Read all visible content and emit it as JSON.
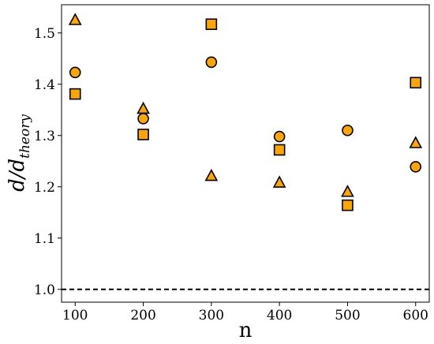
{
  "chart_data": {
    "type": "scatter",
    "xlabel": "n",
    "ylabel": {
      "main": "d/d",
      "subscript": "theory"
    },
    "xlim": [
      80,
      620
    ],
    "ylim": [
      0.975,
      1.555
    ],
    "xticks": [
      "100",
      "200",
      "300",
      "400",
      "500",
      "600"
    ],
    "yticks": [
      "1.0",
      "1.1",
      "1.2",
      "1.3",
      "1.4",
      "1.5"
    ],
    "reference_line": {
      "y": 1.0,
      "style": "dashed",
      "color": "#000000"
    },
    "marker_fill": "#FFA500",
    "marker_edge": "#000000",
    "grid": false,
    "legend": "none",
    "series": [
      {
        "marker": "triangle",
        "x": [
          100,
          200,
          300,
          400,
          500,
          600
        ],
        "y": [
          1.525,
          1.352,
          1.221,
          1.208,
          1.19,
          1.285
        ]
      },
      {
        "marker": "circle",
        "x": [
          100,
          200,
          300,
          400,
          500,
          600
        ],
        "y": [
          1.423,
          1.333,
          1.443,
          1.298,
          1.31,
          1.239
        ]
      },
      {
        "marker": "square",
        "x": [
          100,
          200,
          300,
          400,
          500,
          600
        ],
        "y": [
          1.381,
          1.302,
          1.517,
          1.272,
          1.164,
          1.403
        ]
      }
    ]
  }
}
